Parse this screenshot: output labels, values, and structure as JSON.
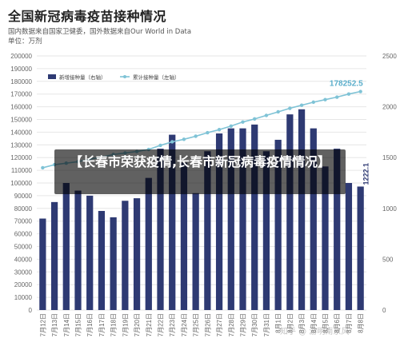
{
  "header": {
    "title": "全国新冠病毒疫苗接种情况",
    "source_note": "国内数据来自国家卫健委，国外数据来自Our World in Data",
    "unit_note": "单位：万剂"
  },
  "overlay": {
    "banner_text": "【长春市荣获疫情,长春市新冠病毒疫情情况】",
    "watermark": "知乎 @ 游明南京风"
  },
  "colors": {
    "bar": "#2e3a73",
    "line": "#7fc3d6",
    "grid": "#e6e6e6",
    "axis_text": "#666666",
    "banner_bg": "#000000"
  },
  "chart_data": {
    "type": "bar",
    "categories": [
      "7月12日",
      "7月13日",
      "7月14日",
      "7月15日",
      "7月16日",
      "7月17日",
      "7月18日",
      "7月19日",
      "7月20日",
      "7月21日",
      "7月22日",
      "7月23日",
      "7月24日",
      "7月25日",
      "7月26日",
      "7月27日",
      "7月28日",
      "7月29日",
      "7月30日",
      "7月31日",
      "8月1日",
      "8月2日",
      "8月3日",
      "8月4日",
      "8月5日",
      "8月6日",
      "8月7日",
      "8月8日"
    ],
    "series": [
      {
        "name": "新增接种量（右轴）",
        "type": "bar",
        "axis": "left",
        "values": [
          72000,
          85000,
          100000,
          94000,
          90000,
          78000,
          73000,
          86000,
          88000,
          104000,
          127000,
          138000,
          116000,
          92000,
          125000,
          139000,
          143000,
          143000,
          146000,
          125000,
          134000,
          154000,
          158000,
          143000,
          113000,
          127000,
          100000,
          97200
        ]
      },
      {
        "name": "累计接种量（左轴）",
        "type": "line",
        "axis": "right",
        "values": [
          1400,
          1430,
          1445,
          1460,
          1485,
          1505,
          1530,
          1545,
          1560,
          1580,
          1620,
          1655,
          1680,
          1710,
          1745,
          1775,
          1810,
          1850,
          1880,
          1915,
          1950,
          1985,
          2015,
          2045,
          2070,
          2095,
          2125,
          2150
        ]
      }
    ],
    "annotations": [
      {
        "series": "累计接种量（左轴）",
        "label": "178252.5"
      },
      {
        "series": "新增接种量（右轴）",
        "label": "1222.1"
      }
    ],
    "y_left_ticks": [
      "0",
      "10000",
      "20000",
      "30000",
      "40000",
      "50000",
      "60000",
      "70000",
      "80000",
      "90000",
      "100000",
      "110000",
      "120000",
      "130000",
      "140000",
      "150000",
      "160000",
      "170000",
      "180000",
      "190000",
      "200000"
    ],
    "y_right_ticks": [
      "0",
      "500",
      "1000",
      "1500",
      "2000",
      "2500"
    ],
    "ylim_left": [
      0,
      200000
    ],
    "ylim_right": [
      0,
      2500
    ],
    "grid": true,
    "legend_position": "top-left"
  }
}
